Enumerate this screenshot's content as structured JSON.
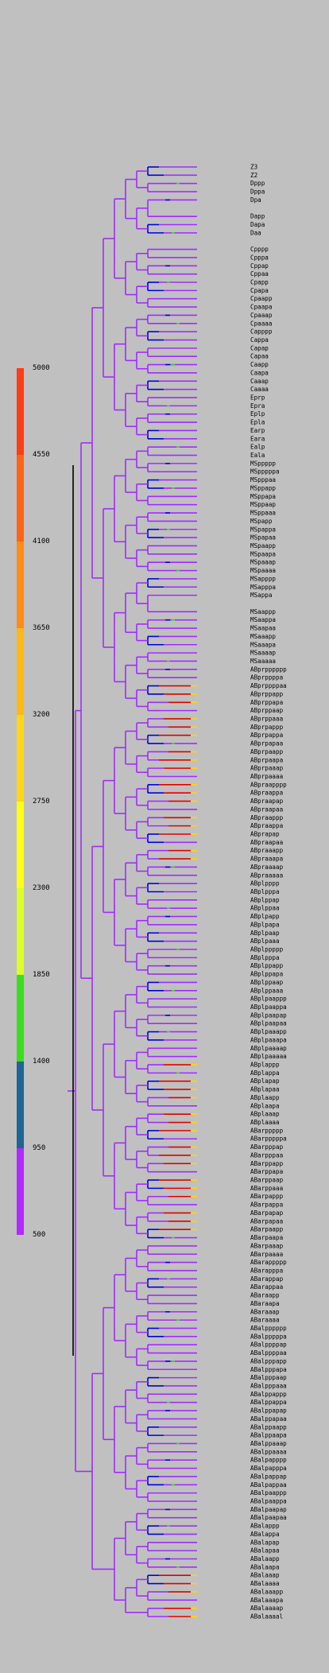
{
  "scale": {
    "levels": [
      {
        "label": "5000",
        "color": "#ff3c14"
      },
      {
        "label": "4550",
        "color": "#ff6414"
      },
      {
        "label": "4100",
        "color": "#ff8c14"
      },
      {
        "label": "3650",
        "color": "#ffb914"
      },
      {
        "label": "3200",
        "color": "#ffd714"
      },
      {
        "label": "2750",
        "color": "#ffff14"
      },
      {
        "label": "2300",
        "color": "#dcff28"
      },
      {
        "label": "1850",
        "color": "#3cdc1e"
      },
      {
        "label": "1400",
        "color": "#1e6496"
      },
      {
        "label": "950",
        "color": "#b428ff"
      },
      {
        "label": "500",
        "color": ""
      }
    ]
  },
  "tree": {
    "colors": {
      "branch": "#a02cff",
      "deep": "#0000dc",
      "late": "#e00000",
      "mid": "#ffd700",
      "early": "#1e8c5a",
      "green": "#3cdc1e",
      "root": "#000000"
    },
    "leaves": [
      "Z3",
      "Z2",
      "Dppp",
      "Dppa",
      "Dpa",
      "",
      "Dapp",
      "Dapa",
      "Daa",
      "",
      "Cpppp",
      "Cpppa",
      "Cppap",
      "Cppaa",
      "Cpapp",
      "Cpapa",
      "Cpaapp",
      "Cpaapa",
      "Cpaaap",
      "Cpaaaa",
      "Capppp",
      "Cappa",
      "Capap",
      "Capaa",
      "Caapp",
      "Caapa",
      "Caaap",
      "Caaaa",
      "Eprp",
      "Epra",
      "Eplp",
      "Epla",
      "Earp",
      "Eara",
      "Ealp",
      "Eala",
      "MSppppp",
      "MSpppppa",
      "MSpppaa",
      "MSppapp",
      "MSppapa",
      "MSppaap",
      "MSppaaa",
      "MSpapp",
      "MSpappa",
      "MSpapaa",
      "MSpaapp",
      "MSpaapa",
      "MSpaaap",
      "MSpaaaa",
      "MSapppp",
      "MSapppa",
      "MSappa",
      "",
      "MSaappp",
      "MSaappa",
      "MSaapaa",
      "MSaaapp",
      "MSaaapa",
      "MSaaaap",
      "MSaaaaa",
      "ABprpppppp",
      "ABprppppa",
      "ABprppppaa",
      "ABprppapp",
      "ABprppapa",
      "ABprppaap",
      "ABprppaaa",
      "ABprpappp",
      "ABprpappa",
      "ABprpapaa",
      "ABprpaapp",
      "ABprpaapa",
      "ABprpaaap",
      "ABprpaaaa",
      "ABpraapppp",
      "ABpraappa",
      "ABpraapap",
      "ABpraapaa",
      "ABpraappp",
      "ABpraappa",
      "ABprapap",
      "ABpraapaa",
      "ABpraaapp",
      "ABpraaapa",
      "ABpraaaap",
      "ABpraaaaa",
      "ABplpppp",
      "ABplpppa",
      "ABplppap",
      "ABplppaa",
      "ABplpapp",
      "ABplpapa",
      "ABplpaap",
      "ABplpaaa",
      "ABplppppp",
      "ABplpppa",
      "ABplppapp",
      "ABplppapa",
      "ABplppaap",
      "ABplppaaa",
      "ABplpaappp",
      "ABplpaappa",
      "ABplpaapap",
      "ABplpaapaa",
      "ABplpaaapp",
      "ABplpaaapa",
      "ABplpaaaap",
      "ABplpaaaaa",
      "ABplappp",
      "ABplappa",
      "ABplapap",
      "ABplapaa",
      "ABplaapp",
      "ABplaapa",
      "ABplaaap",
      "ABplaaaa",
      "ABarppppp",
      "ABarpppppa",
      "ABarpppap",
      "ABarpppaa",
      "ABarppapp",
      "ABarppapa",
      "ABarppaap",
      "ABarppaaa",
      "ABarpappp",
      "ABarpappa",
      "ABarpapap",
      "ABarpapaa",
      "ABarpaapp",
      "ABarpaapa",
      "ABarpaaap",
      "ABarpaaaa",
      "ABarappppp",
      "ABarapppa",
      "ABarappap",
      "ABarappaa",
      "ABaraapp",
      "ABaraapa",
      "ABaraaap",
      "ABaraaaa",
      "ABalpppppp",
      "ABalpppppa",
      "ABalppppap",
      "ABalppppaa",
      "ABalpppapp",
      "ABalpppapa",
      "ABalpppaap",
      "ABalpppaaa",
      "ABalppappp",
      "ABalppappa",
      "ABalppapap",
      "ABalppapaa",
      "ABalppaapp",
      "ABalppaapa",
      "ABalppaaap",
      "ABalppaaaa",
      "ABalpapppp",
      "ABalpapppa",
      "ABalpappap",
      "ABalpappaa",
      "ABalpaappp",
      "ABalpaappa",
      "ABalpaapap",
      "ABalpaapaa",
      "ABalappp",
      "ABalappa",
      "ABalapap",
      "ABalapaa",
      "ABalaapp",
      "ABalaapa",
      "ABalaaap",
      "ABalaaaa",
      "ABalaaapp",
      "ABalaaapa",
      "ABalaaaap",
      "ABalaaaal"
    ]
  }
}
